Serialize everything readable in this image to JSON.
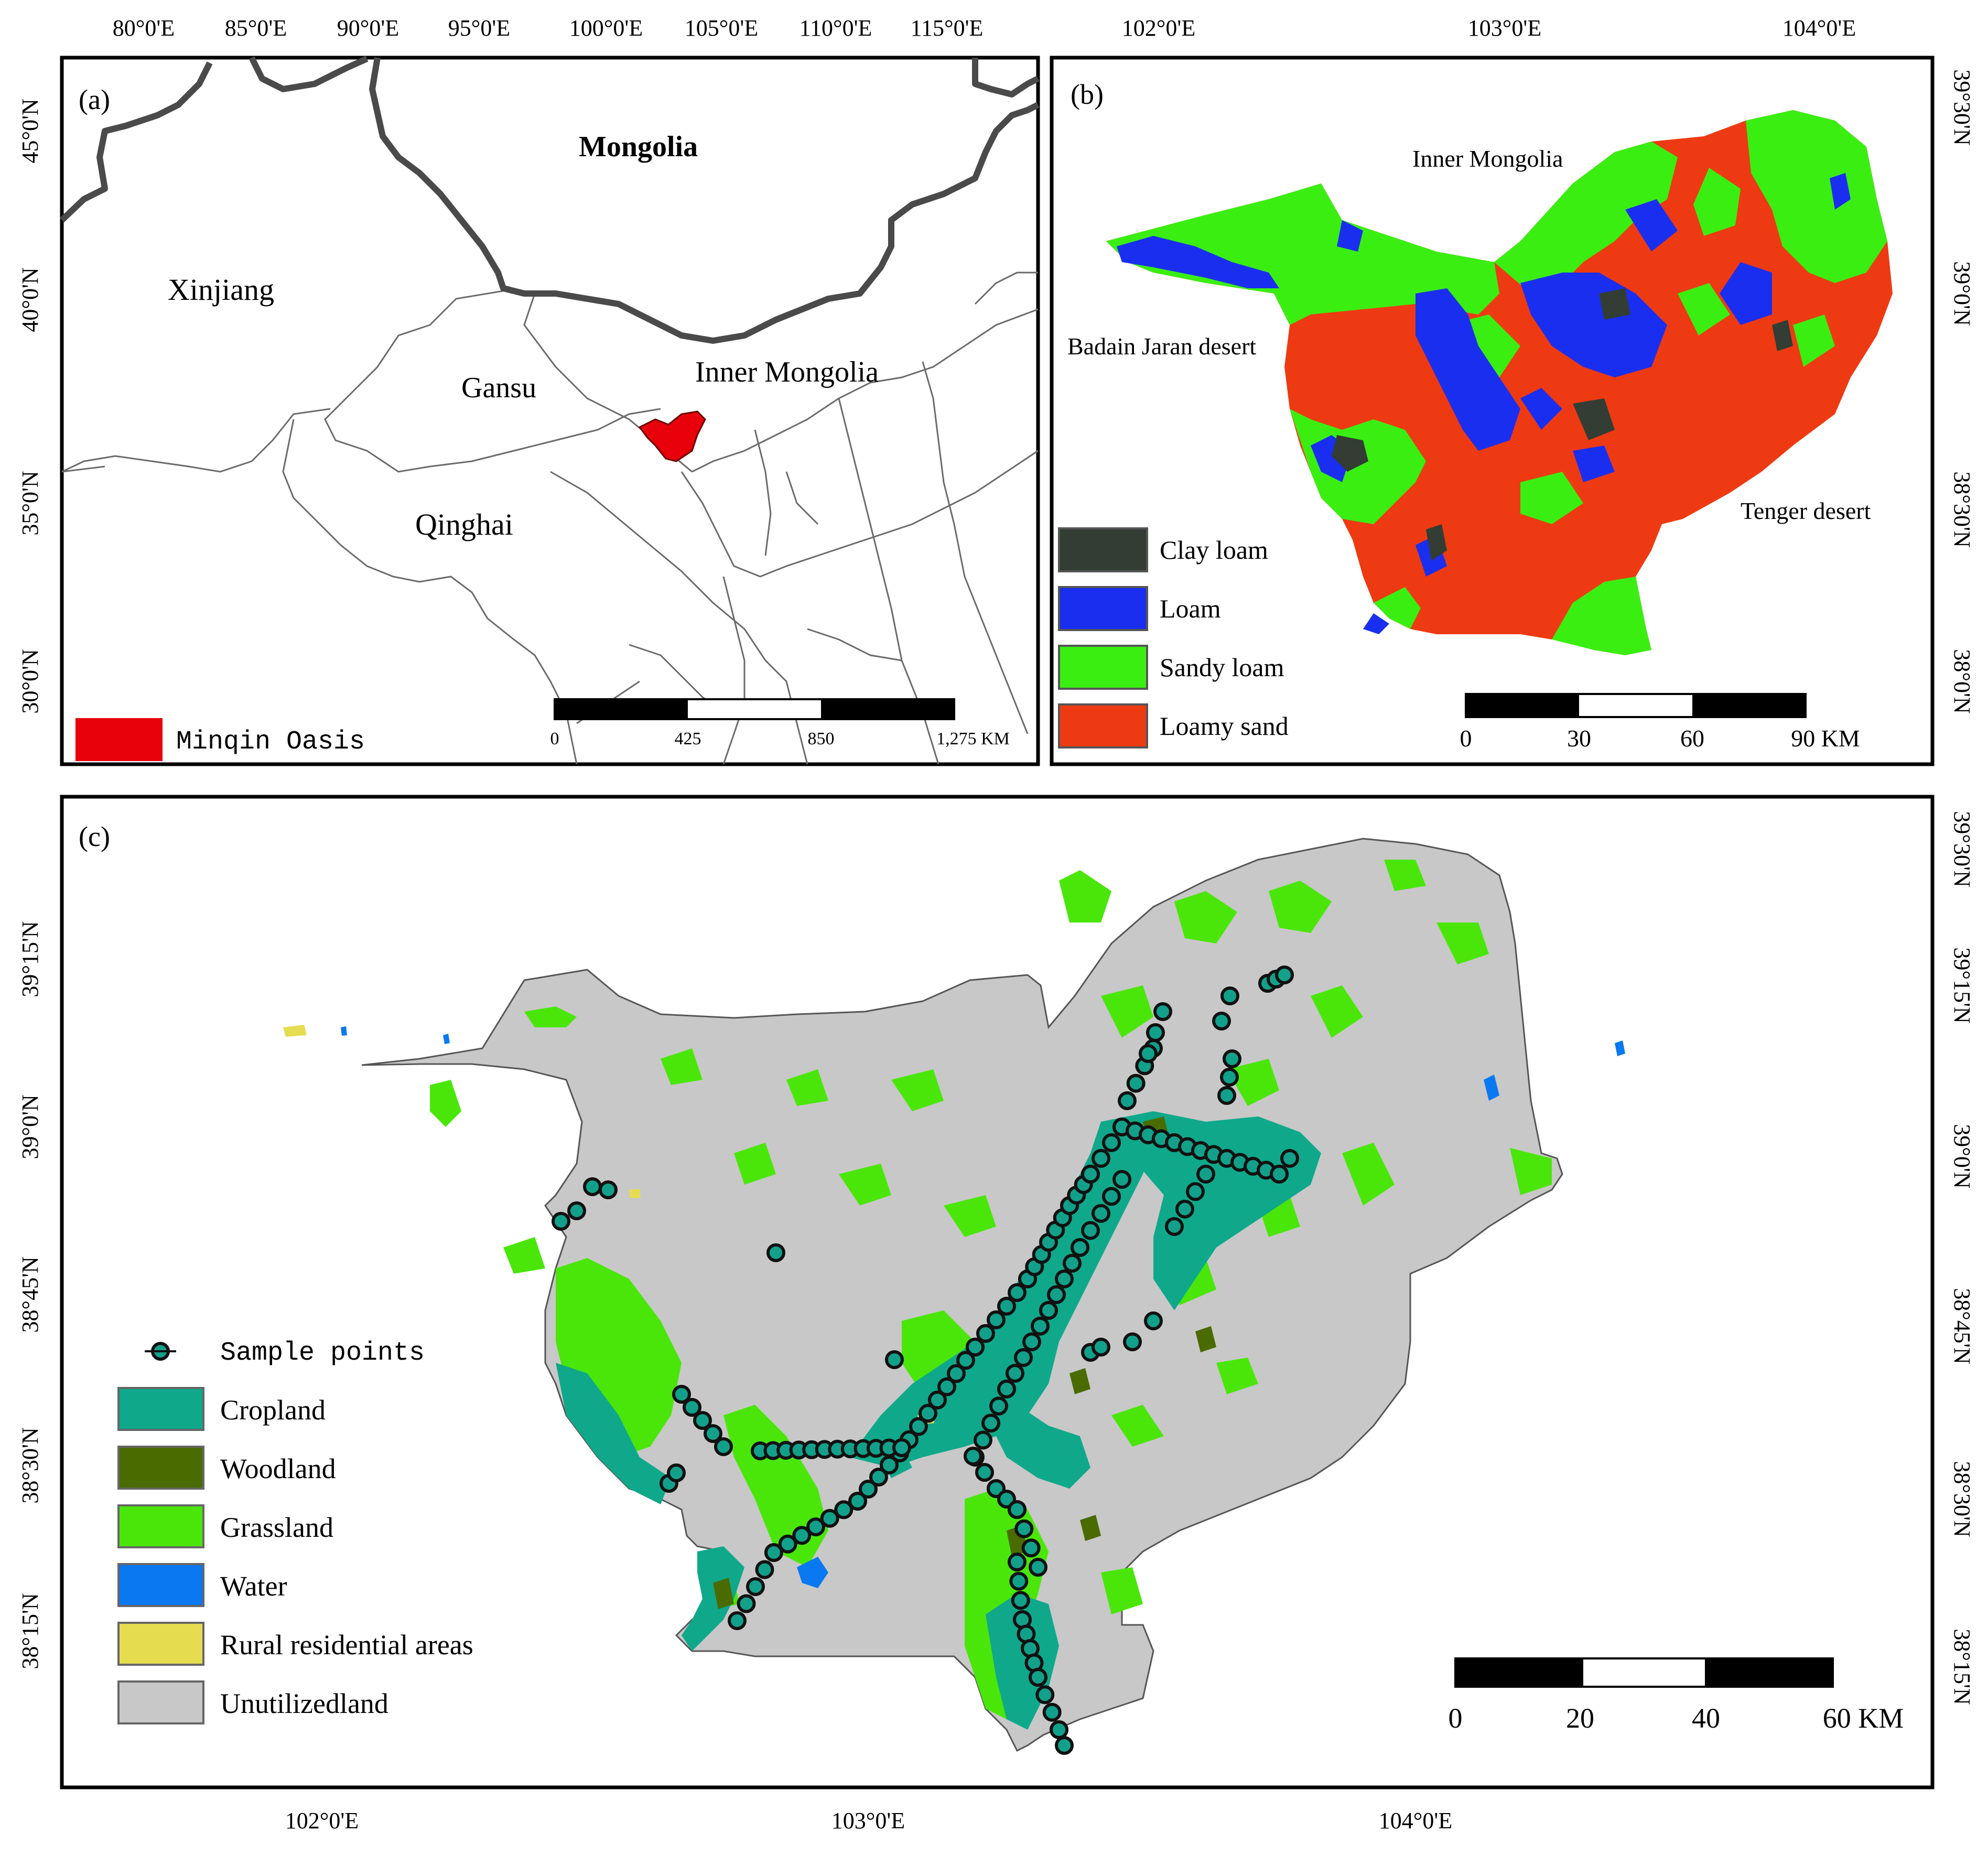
{
  "panel_a": {
    "label": "(a)",
    "top_ticks": [
      "80°0'E",
      "85°0'E",
      "90°0'E",
      "95°0'E",
      "100°0'E",
      "105°0'E",
      "110°0'E",
      "115°0'E"
    ],
    "left_ticks": [
      "45°0'N",
      "40°0'N",
      "35°0'N",
      "30°0'N"
    ],
    "places": {
      "mongolia": "Mongolia",
      "xinjiang": "Xinjiang",
      "gansu": "Gansu",
      "inner_mongolia": "Inner Mongolia",
      "qinghai": "Qinghai"
    },
    "scale": {
      "labels": [
        "0",
        "425",
        "850",
        "1,275 KM"
      ]
    },
    "legend": {
      "label": "Minqin Oasis",
      "color": "#e8000a"
    }
  },
  "panel_b": {
    "label": "(b)",
    "top_ticks": [
      "102°0'E",
      "103°0'E",
      "104°0'E"
    ],
    "right_ticks": [
      "39°30'N",
      "39°0'N",
      "38°30'N",
      "38°0'N"
    ],
    "places": {
      "inner_mongolia": "Inner Mongolia",
      "badain": "Badain Jaran desert",
      "tenger": "Tenger desert"
    },
    "legend": [
      {
        "label": "Clay loam",
        "color": "#333d33"
      },
      {
        "label": "Loam",
        "color": "#1a2ef0"
      },
      {
        "label": "Sandy loam",
        "color": "#3aee12"
      },
      {
        "label": "Loamy sand",
        "color": "#ee3a12"
      }
    ],
    "scale": {
      "labels": [
        "0",
        "30",
        "60",
        "90 KM"
      ]
    }
  },
  "panel_c": {
    "label": "(c)",
    "bottom_ticks": [
      "102°0'E",
      "103°0'E",
      "104°0'E"
    ],
    "left_ticks": [
      "39°15'N",
      "39°0'N",
      "38°45'N",
      "38°30'N",
      "38°15'N"
    ],
    "right_ticks": [
      "39°30'N",
      "39°15'N",
      "39°0'N",
      "38°45'N",
      "38°30'N",
      "38°15'N"
    ],
    "legend": {
      "points_label": "Sample points",
      "items": [
        {
          "label": "Cropland",
          "color": "#0fa88a"
        },
        {
          "label": "Woodland",
          "color": "#4a6b00"
        },
        {
          "label": "Grassland",
          "color": "#4ae60a"
        },
        {
          "label": "Water",
          "color": "#0a78f0"
        },
        {
          "label": "Rural residential areas",
          "color": "#e6dc50"
        },
        {
          "label": "Unutilizedland",
          "color": "#c8c8c8"
        }
      ]
    },
    "scale": {
      "labels": [
        "0",
        "20",
        "40",
        "60 KM"
      ]
    }
  }
}
